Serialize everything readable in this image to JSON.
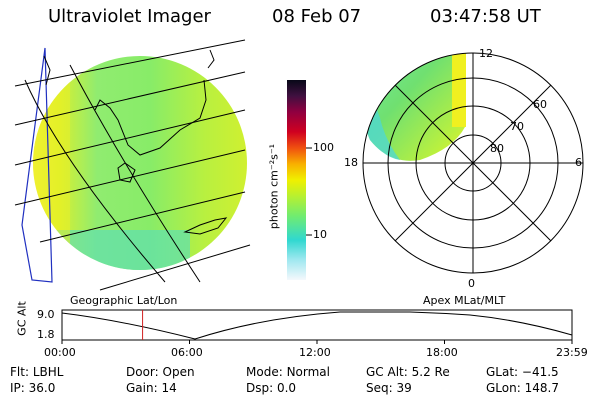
{
  "header": {
    "title": "Ultraviolet Imager",
    "date": "08 Feb 07",
    "time": "03:47:58 UT"
  },
  "colorbar": {
    "tick_labels": [
      "100",
      "10"
    ],
    "unit_label": "photon cm⁻²s⁻¹",
    "colors": [
      "#e8f0f8",
      "#b8e8f0",
      "#40d8d8",
      "#80f070",
      "#c8f020",
      "#f8f000",
      "#f8a000",
      "#f04000",
      "#c80020",
      "#800040",
      "#401040",
      "#080818"
    ]
  },
  "left_panel": {
    "caption": "Geographic Lat/Lon"
  },
  "right_panel": {
    "caption": "Apex MLat/MLT",
    "mlt_labels": {
      "top": "12",
      "left": "18",
      "right": "6",
      "bottom": "0"
    },
    "mlat_labels": [
      "60",
      "70",
      "80"
    ]
  },
  "altitude_plot": {
    "ylabel": "GC Alt",
    "y_ticks": [
      "9.0",
      "1.8"
    ],
    "x_ticks": [
      "00:00",
      "06:00",
      "12:00",
      "18:00",
      "23:59"
    ],
    "current_time_fraction": 0.158
  },
  "status": {
    "row1": [
      {
        "label": "Flt:",
        "value": "LBHL"
      },
      {
        "label": "Door:",
        "value": "Open"
      },
      {
        "label": "Mode:",
        "value": "Normal"
      },
      {
        "label": "GC Alt:",
        "value": "5.2 Re"
      },
      {
        "label": "GLat:",
        "value": "−41.5"
      }
    ],
    "row2": [
      {
        "label": "IP:",
        "value": "36.0"
      },
      {
        "label": "Gain:",
        "value": "14"
      },
      {
        "label": "Dsp:",
        "value": "0.0"
      },
      {
        "label": "Seq:",
        "value": "39"
      },
      {
        "label": "GLon:",
        "value": "148.7"
      }
    ]
  }
}
